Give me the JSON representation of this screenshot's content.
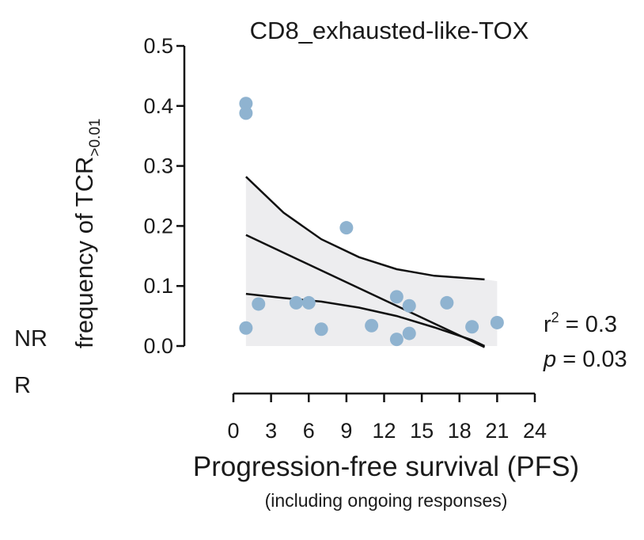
{
  "chart_data": {
    "type": "scatter",
    "title": "CD8_exhausted-like-TOX",
    "ylabel": "frequency of  TCR",
    "ylabel_subscript": ">0.01",
    "xlabel": "Progression-free survival (PFS)",
    "xlabel_sub": "(including ongoing responses)",
    "ylim": [
      0,
      0.5
    ],
    "yticks": [
      "0.0",
      "0.1",
      "0.2",
      "0.3",
      "0.4",
      "0.5"
    ],
    "xlim": [
      0,
      24
    ],
    "xticks": [
      "0",
      "3",
      "6",
      "9",
      "12",
      "15",
      "18",
      "21",
      "24"
    ],
    "row_labels": [
      "NR",
      "R"
    ],
    "stats": {
      "r2_label": "r",
      "r2_exp": "2",
      "r2_value": " = 0.3",
      "p_label": "p",
      "p_value": " = 0.03"
    },
    "points": [
      {
        "x": 1,
        "y": 0.404
      },
      {
        "x": 1,
        "y": 0.388
      },
      {
        "x": 1,
        "y": 0.03
      },
      {
        "x": 2,
        "y": 0.07
      },
      {
        "x": 5,
        "y": 0.072
      },
      {
        "x": 6,
        "y": 0.072
      },
      {
        "x": 7,
        "y": 0.028
      },
      {
        "x": 9,
        "y": 0.197
      },
      {
        "x": 11,
        "y": 0.034
      },
      {
        "x": 13,
        "y": 0.082
      },
      {
        "x": 13,
        "y": 0.011
      },
      {
        "x": 14,
        "y": 0.067
      },
      {
        "x": 14,
        "y": 0.021
      },
      {
        "x": 17,
        "y": 0.072
      },
      {
        "x": 19,
        "y": 0.032
      },
      {
        "x": 21,
        "y": 0.039
      }
    ],
    "fit_line": {
      "x": [
        1,
        20
      ],
      "y": [
        0.185,
        -0.002
      ]
    },
    "ci_upper": {
      "x": [
        1,
        4,
        7,
        10,
        13,
        16,
        20
      ],
      "y": [
        0.282,
        0.222,
        0.178,
        0.148,
        0.128,
        0.117,
        0.111
      ]
    },
    "ci_lower": {
      "x": [
        1,
        4,
        7,
        10,
        13,
        16,
        19,
        20
      ],
      "y": [
        0.087,
        0.08,
        0.074,
        0.064,
        0.05,
        0.031,
        0.01,
        0.0
      ]
    },
    "band_extent": {
      "x": [
        1,
        21
      ],
      "y_top": 0.108
    },
    "colors": {
      "point": "#8fb3d0",
      "band": "#ededef",
      "line": "#111111",
      "axis": "#111111"
    }
  }
}
